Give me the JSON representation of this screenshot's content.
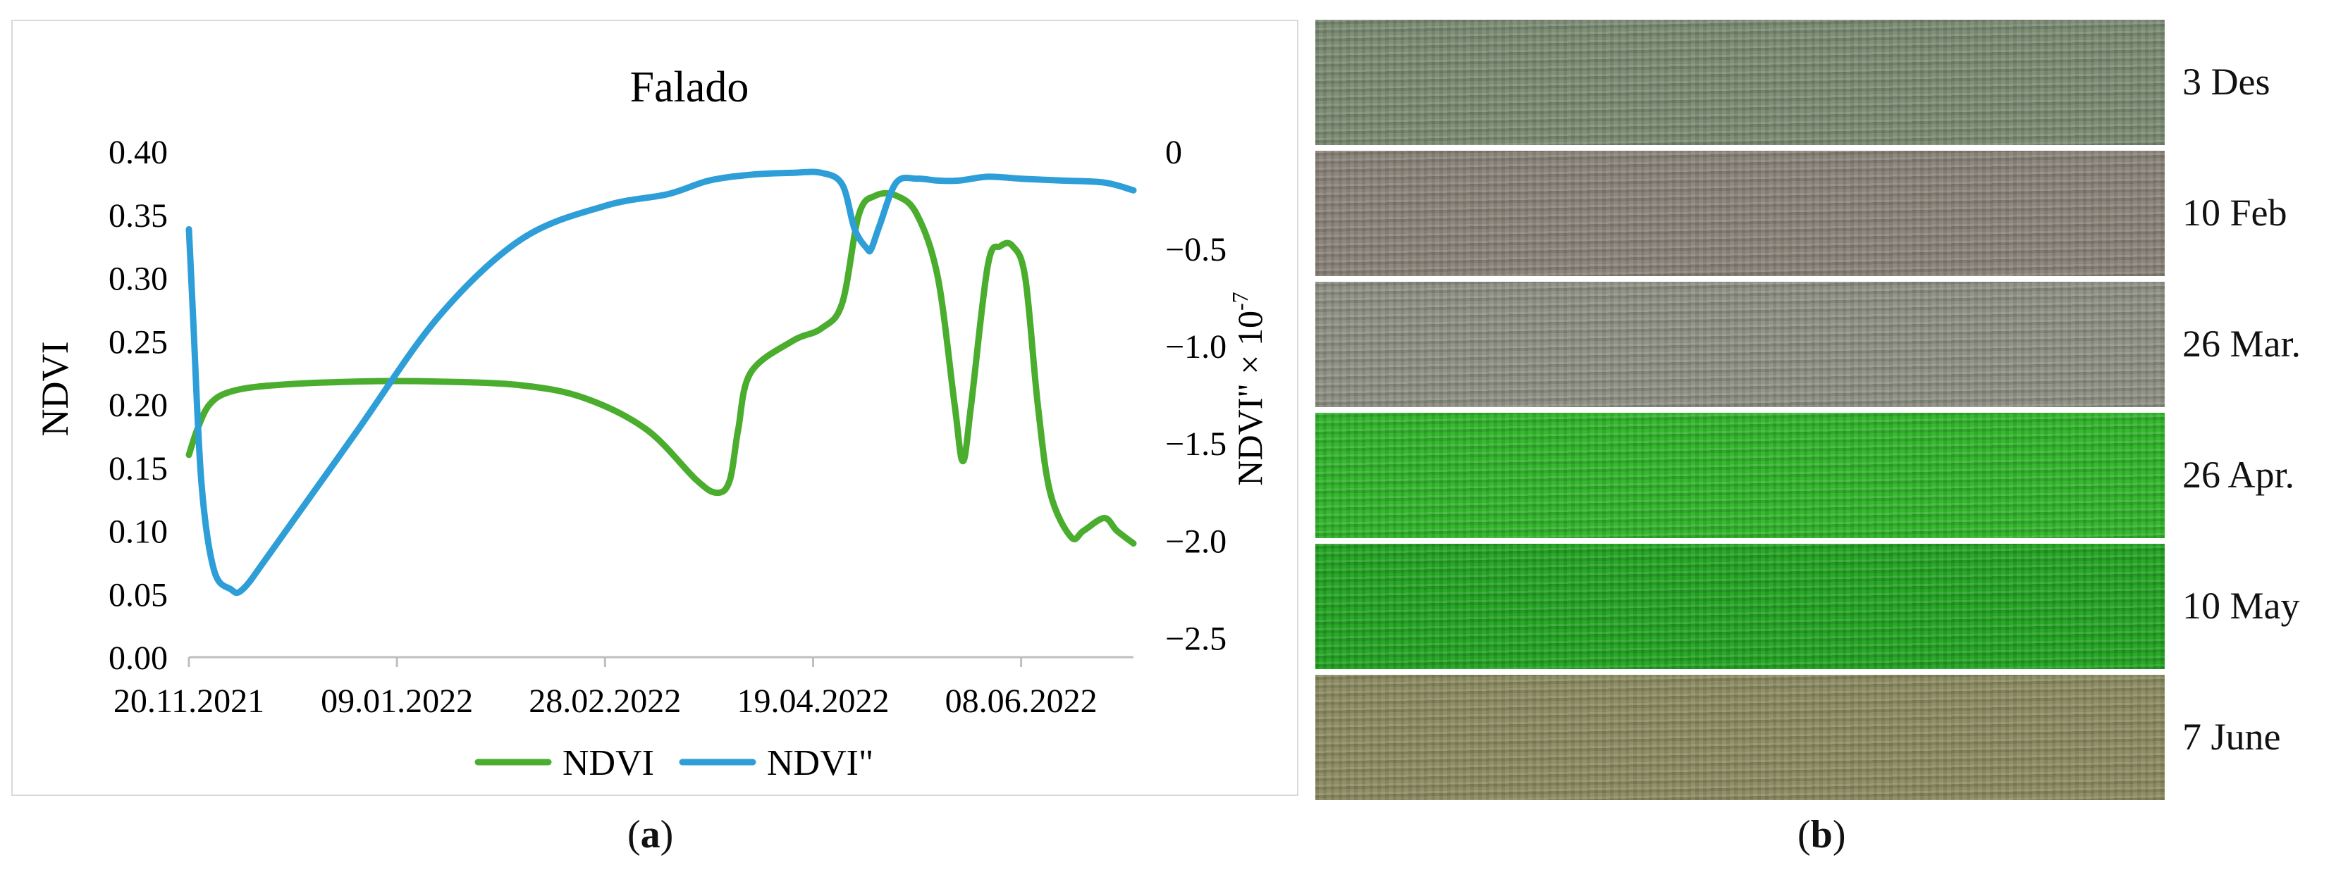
{
  "chart_data": {
    "type": "line",
    "title": "Falado",
    "xlabel": "",
    "ylabel": "NDVI",
    "y2label": "NDVI\" × 10",
    "y2label_exp": "-7",
    "x_ticks": [
      "20.11.2021",
      "09.01.2022",
      "28.02.2022",
      "19.04.2022",
      "08.06.2022"
    ],
    "x_tick_days": [
      0,
      50,
      100,
      150,
      200
    ],
    "xlim": [
      0,
      227
    ],
    "ylim": [
      0,
      0.4
    ],
    "y_ticks": [
      "0.00",
      "0.05",
      "0.10",
      "0.15",
      "0.20",
      "0.25",
      "0.30",
      "0.35",
      "0.40"
    ],
    "y_tick_values": [
      0,
      0.05,
      0.1,
      0.15,
      0.2,
      0.25,
      0.3,
      0.35,
      0.4
    ],
    "y2lim": [
      -2.6,
      0
    ],
    "y2_ticks": [
      "0",
      "−0.5",
      "−1.0",
      "−1.5",
      "−2.0",
      "−2.5"
    ],
    "y2_tick_values": [
      0,
      -0.5,
      -1.0,
      -1.5,
      -2.0,
      -2.5
    ],
    "grid": false,
    "legend": "bottom",
    "series": [
      {
        "name": "NDVI",
        "color": "#4aad2e",
        "axis": "left",
        "x": [
          0,
          2,
          5,
          10,
          20,
          40,
          60,
          80,
          95,
          110,
          122,
          127,
          130,
          132,
          135,
          145,
          152,
          157,
          161,
          165,
          170,
          175,
          180,
          184,
          186,
          188,
          192,
          195,
          198,
          201,
          204,
          207,
          212,
          215,
          220,
          223,
          227
        ],
        "y": [
          0.16,
          0.18,
          0.2,
          0.21,
          0.215,
          0.218,
          0.218,
          0.215,
          0.205,
          0.18,
          0.14,
          0.13,
          0.14,
          0.18,
          0.225,
          0.25,
          0.26,
          0.28,
          0.35,
          0.365,
          0.365,
          0.35,
          0.3,
          0.2,
          0.155,
          0.2,
          0.31,
          0.325,
          0.325,
          0.3,
          0.2,
          0.13,
          0.095,
          0.1,
          0.11,
          0.1,
          0.09
        ]
      },
      {
        "name": "NDVI\"",
        "color": "#2e9ed8",
        "axis": "right",
        "x": [
          0,
          1,
          3,
          6,
          10,
          13,
          20,
          40,
          60,
          80,
          100,
          115,
          125,
          135,
          145,
          152,
          157,
          160,
          163,
          164,
          166,
          170,
          175,
          180,
          185,
          192,
          200,
          210,
          220,
          227
        ],
        "y": [
          -0.4,
          -0.85,
          -1.7,
          -2.15,
          -2.25,
          -2.25,
          -2.05,
          -1.45,
          -0.85,
          -0.45,
          -0.28,
          -0.22,
          -0.15,
          -0.12,
          -0.11,
          -0.11,
          -0.17,
          -0.4,
          -0.5,
          -0.5,
          -0.38,
          -0.16,
          -0.14,
          -0.15,
          -0.15,
          -0.13,
          -0.14,
          -0.15,
          -0.16,
          -0.2
        ]
      }
    ]
  },
  "photo_strips": {
    "labels": [
      "3 Des",
      "10 Feb",
      "26 Mar.",
      "26 Apr.",
      "10 May",
      "7 June"
    ],
    "colors": [
      "#7a8a72",
      "#898278",
      "#8d8f84",
      "#2fb429",
      "#22a321",
      "#8b8a60"
    ]
  },
  "captions": {
    "a_open": "(",
    "a_letter": "a",
    "a_close": ")",
    "b_open": "(",
    "b_letter": "b",
    "b_close": ")"
  }
}
